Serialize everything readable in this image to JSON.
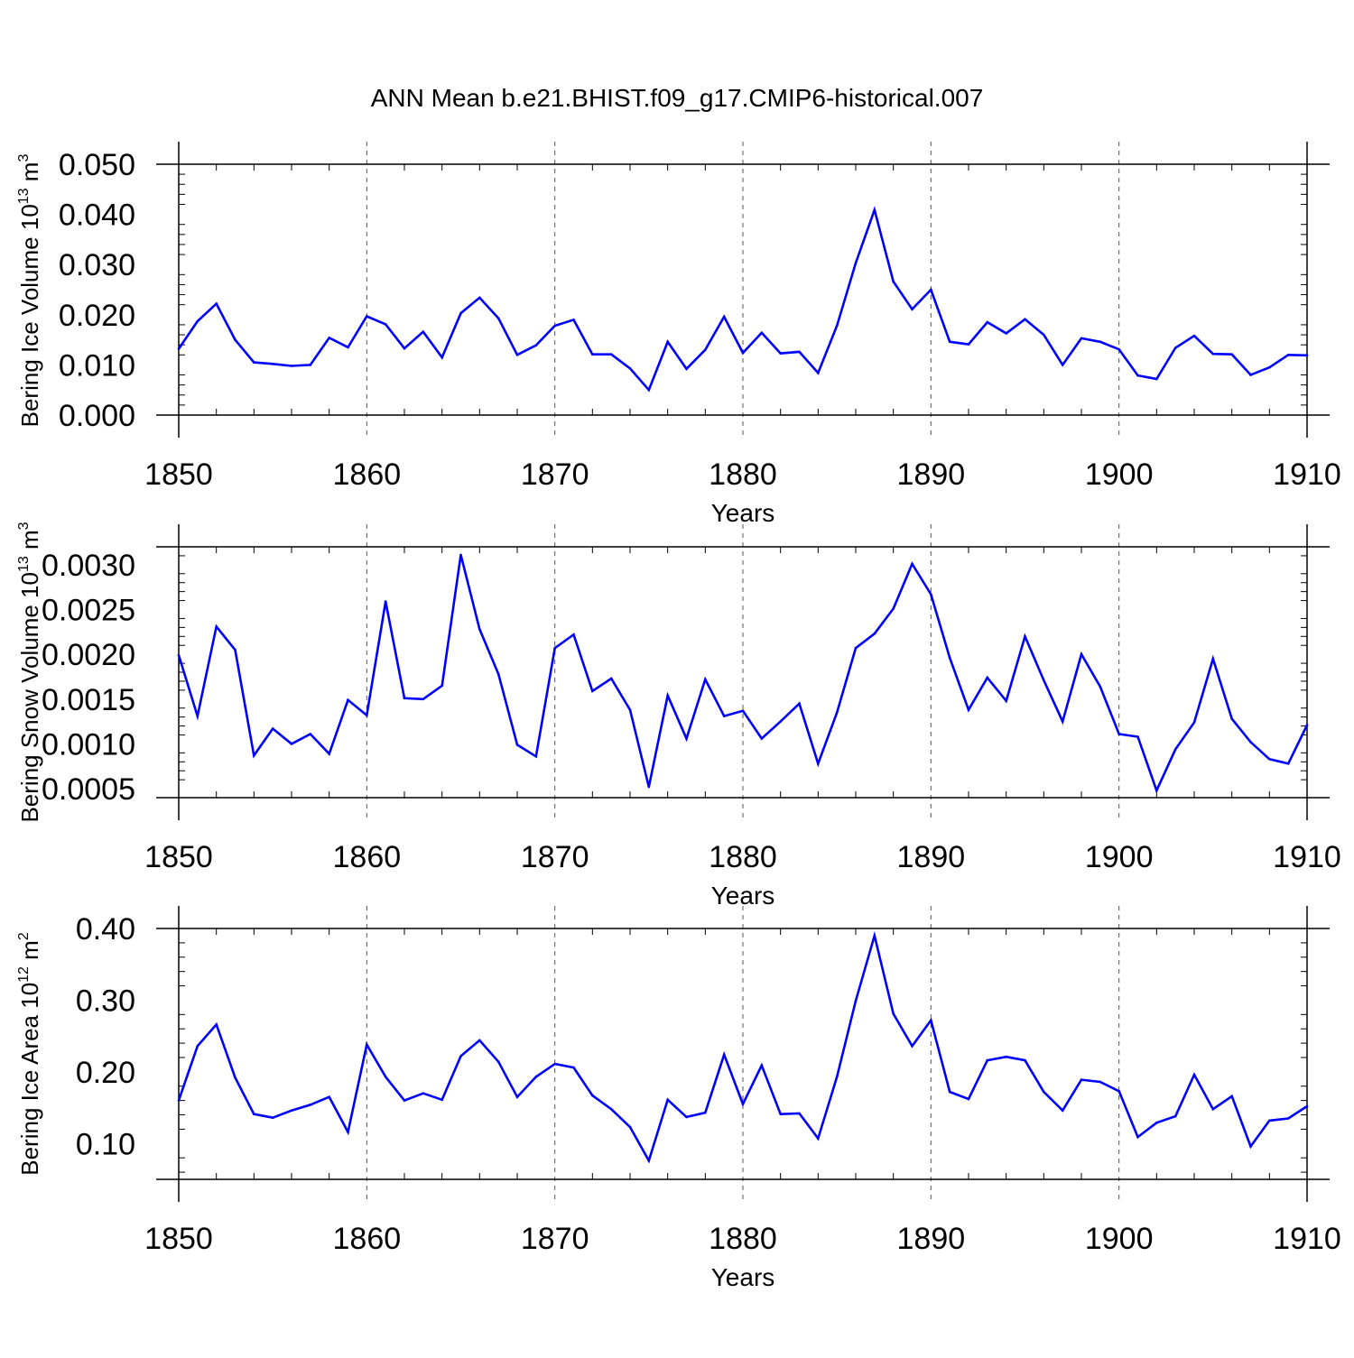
{
  "title": "ANN Mean b.e21.BHIST.f09_g17.CMIP6-historical.007",
  "colors": {
    "line": "#0000ff",
    "axis": "#000000",
    "grid": "#555555"
  },
  "chart_data": [
    {
      "type": "line",
      "name": "ice-volume",
      "ylabel": "Bering Ice Volume",
      "ylabel_unit_base": "10",
      "ylabel_unit_exp": "13",
      "ylabel_unit_rest": " m",
      "ylabel_unit_rest_exp": "3",
      "xlabel": "Years",
      "xlim": [
        1850,
        1910
      ],
      "ylim": [
        0.0,
        0.05
      ],
      "x_ticks": [
        "1850",
        "1860",
        "1870",
        "1880",
        "1890",
        "1900",
        "1910"
      ],
      "y_ticks": [
        "0.000",
        "0.010",
        "0.020",
        "0.030",
        "0.040",
        "0.050"
      ],
      "y_tick_values": [
        0.0,
        0.01,
        0.02,
        0.03,
        0.04,
        0.05
      ],
      "grid": "vertical dashed at decades",
      "x": [
        1850,
        1851,
        1852,
        1853,
        1854,
        1855,
        1856,
        1857,
        1858,
        1859,
        1860,
        1861,
        1862,
        1863,
        1864,
        1865,
        1866,
        1867,
        1868,
        1869,
        1870,
        1871,
        1872,
        1873,
        1874,
        1875,
        1876,
        1877,
        1878,
        1879,
        1880,
        1881,
        1882,
        1883,
        1884,
        1885,
        1886,
        1887,
        1888,
        1889,
        1890,
        1891,
        1892,
        1893,
        1894,
        1895,
        1896,
        1897,
        1898,
        1899,
        1900,
        1901,
        1902,
        1903,
        1904,
        1905,
        1906,
        1907,
        1908,
        1909,
        1910
      ],
      "values": [
        0.0132,
        0.0187,
        0.0222,
        0.015,
        0.0105,
        0.0102,
        0.0098,
        0.01,
        0.0154,
        0.0135,
        0.0197,
        0.0181,
        0.0133,
        0.0166,
        0.0115,
        0.0203,
        0.0234,
        0.0193,
        0.012,
        0.0139,
        0.0178,
        0.019,
        0.0121,
        0.0121,
        0.0093,
        0.005,
        0.0146,
        0.0092,
        0.013,
        0.0196,
        0.0124,
        0.0164,
        0.0123,
        0.0126,
        0.0084,
        0.0178,
        0.0303,
        0.0409,
        0.0266,
        0.0211,
        0.025,
        0.0146,
        0.0141,
        0.0185,
        0.0163,
        0.0191,
        0.016,
        0.01,
        0.0153,
        0.0146,
        0.0131,
        0.0079,
        0.0072,
        0.0134,
        0.0158,
        0.0122,
        0.0121,
        0.008,
        0.0095,
        0.012,
        0.0119
      ]
    },
    {
      "type": "line",
      "name": "snow-volume",
      "ylabel": "Bering Snow Volume",
      "ylabel_unit_base": "10",
      "ylabel_unit_exp": "13",
      "ylabel_unit_rest": " m",
      "ylabel_unit_rest_exp": "3",
      "xlabel": "Years",
      "xlim": [
        1850,
        1910
      ],
      "ylim": [
        0.0004,
        0.0032
      ],
      "x_ticks": [
        "1850",
        "1860",
        "1870",
        "1880",
        "1890",
        "1900",
        "1910"
      ],
      "y_ticks": [
        "0.0005",
        "0.0010",
        "0.0015",
        "0.0020",
        "0.0025",
        "0.0030"
      ],
      "y_tick_values": [
        0.0005,
        0.001,
        0.0015,
        0.002,
        0.0025,
        0.003
      ],
      "grid": "vertical dashed at decades",
      "x": [
        1850,
        1851,
        1852,
        1853,
        1854,
        1855,
        1856,
        1857,
        1858,
        1859,
        1860,
        1861,
        1862,
        1863,
        1864,
        1865,
        1866,
        1867,
        1868,
        1869,
        1870,
        1871,
        1872,
        1873,
        1874,
        1875,
        1876,
        1877,
        1878,
        1879,
        1880,
        1881,
        1882,
        1883,
        1884,
        1885,
        1886,
        1887,
        1888,
        1889,
        1890,
        1891,
        1892,
        1893,
        1894,
        1895,
        1896,
        1897,
        1898,
        1899,
        1900,
        1901,
        1902,
        1903,
        1904,
        1905,
        1906,
        1907,
        1908,
        1909,
        1910
      ],
      "values": [
        0.00199,
        0.00131,
        0.00231,
        0.00205,
        0.00087,
        0.00117,
        0.001,
        0.00111,
        0.00089,
        0.00149,
        0.00132,
        0.00259,
        0.00151,
        0.0015,
        0.00165,
        0.00311,
        0.00228,
        0.00178,
        0.00099,
        0.00086,
        0.00207,
        0.00222,
        0.00159,
        0.00173,
        0.00138,
        0.00052,
        0.00154,
        0.00106,
        0.00172,
        0.00131,
        0.00137,
        0.00106,
        0.00125,
        0.00145,
        0.00078,
        0.00135,
        0.00207,
        0.00223,
        0.00251,
        0.00301,
        0.00267,
        0.00196,
        0.00138,
        0.00174,
        0.00148,
        0.0022,
        0.00171,
        0.00125,
        0.002,
        0.00164,
        0.00111,
        0.00108,
        0.00048,
        0.00094,
        0.00124,
        0.00195,
        0.00128,
        0.00102,
        0.00083,
        0.00078,
        0.00121
      ]
    },
    {
      "type": "line",
      "name": "ice-area",
      "ylabel": "Bering Ice Area",
      "ylabel_unit_base": "10",
      "ylabel_unit_exp": "12",
      "ylabel_unit_rest": " m",
      "ylabel_unit_rest_exp": "2",
      "xlabel": "Years",
      "xlim": [
        1850,
        1910
      ],
      "ylim": [
        0.05,
        0.4
      ],
      "x_ticks": [
        "1850",
        "1860",
        "1870",
        "1880",
        "1890",
        "1900",
        "1910"
      ],
      "y_ticks": [
        "0.10",
        "0.20",
        "0.30",
        "0.40"
      ],
      "y_tick_values": [
        0.1,
        0.2,
        0.3,
        0.4
      ],
      "grid": "vertical dashed at decades",
      "x": [
        1850,
        1851,
        1852,
        1853,
        1854,
        1855,
        1856,
        1857,
        1858,
        1859,
        1860,
        1861,
        1862,
        1863,
        1864,
        1865,
        1866,
        1867,
        1868,
        1869,
        1870,
        1871,
        1872,
        1873,
        1874,
        1875,
        1876,
        1877,
        1878,
        1879,
        1880,
        1881,
        1882,
        1883,
        1884,
        1885,
        1886,
        1887,
        1888,
        1889,
        1890,
        1891,
        1892,
        1893,
        1894,
        1895,
        1896,
        1897,
        1898,
        1899,
        1900,
        1901,
        1902,
        1903,
        1904,
        1905,
        1906,
        1907,
        1908,
        1909,
        1910
      ],
      "values": [
        0.16,
        0.236,
        0.266,
        0.192,
        0.141,
        0.136,
        0.146,
        0.154,
        0.165,
        0.116,
        0.238,
        0.193,
        0.16,
        0.17,
        0.161,
        0.222,
        0.244,
        0.214,
        0.165,
        0.193,
        0.211,
        0.206,
        0.167,
        0.148,
        0.123,
        0.076,
        0.161,
        0.137,
        0.143,
        0.224,
        0.155,
        0.209,
        0.141,
        0.142,
        0.107,
        0.193,
        0.299,
        0.39,
        0.281,
        0.236,
        0.272,
        0.172,
        0.162,
        0.216,
        0.221,
        0.216,
        0.172,
        0.146,
        0.189,
        0.186,
        0.173,
        0.109,
        0.129,
        0.138,
        0.196,
        0.148,
        0.166,
        0.096,
        0.132,
        0.135,
        0.152
      ]
    }
  ]
}
